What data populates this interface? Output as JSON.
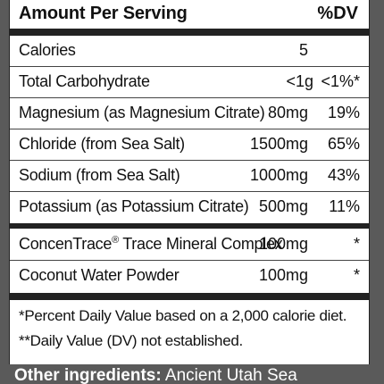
{
  "header": {
    "amount_per_serving": "Amount Per Serving",
    "dv": "%DV"
  },
  "rows": [
    {
      "name": "Calories",
      "amount": "5",
      "dv": ""
    },
    {
      "name": "Total Carbohydrate",
      "amount": "<1g",
      "dv": "<1%*"
    },
    {
      "name": "Magnesium (as Magnesium Citrate)",
      "amount": "80mg",
      "dv": "19%"
    },
    {
      "name": "Chloride (from Sea Salt)",
      "amount": "1500mg",
      "dv": "65%"
    },
    {
      "name": "Sodium (from Sea Salt)",
      "amount": "1000mg",
      "dv": "43%"
    },
    {
      "name": "Potassium (as Potassium Citrate)",
      "amount": "500mg",
      "dv": "11%"
    },
    {
      "name": "ConcenTrace",
      "trademark": "®",
      "name_rest": " Trace Mineral Complex",
      "amount": "100mg",
      "dv": "*"
    },
    {
      "name": "Coconut Water Powder",
      "amount": "100mg",
      "dv": "*"
    }
  ],
  "footnotes": [
    "*Percent Daily Value based on a 2,000 calorie diet.",
    "**Daily Value (DV) not established."
  ],
  "other_ingredients": {
    "label": "Other ingredients:",
    "text": " Ancient Utah Sea"
  }
}
